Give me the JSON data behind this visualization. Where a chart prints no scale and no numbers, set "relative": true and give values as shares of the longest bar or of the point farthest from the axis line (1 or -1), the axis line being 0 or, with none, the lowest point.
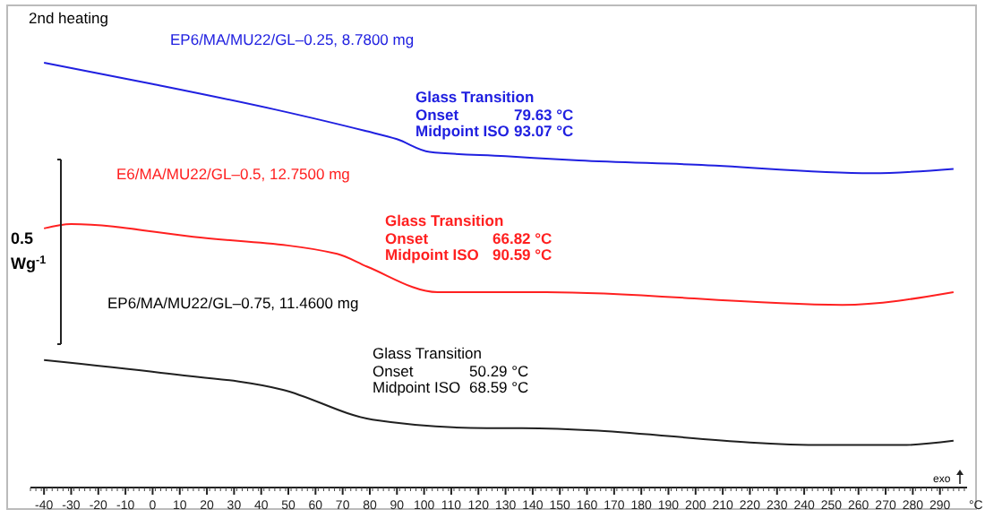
{
  "chart_data": {
    "type": "line",
    "relative": true,
    "xlabel": "°C",
    "xlim": [
      -45,
      300
    ],
    "xticks": [
      -40,
      -30,
      -20,
      -10,
      0,
      10,
      20,
      30,
      40,
      50,
      60,
      70,
      80,
      90,
      100,
      110,
      120,
      130,
      140,
      150,
      160,
      170,
      180,
      190,
      200,
      210,
      220,
      230,
      240,
      250,
      260,
      270,
      280,
      290
    ],
    "grid": false,
    "legend": false,
    "marker": "none",
    "line_style": "solid",
    "series": [
      {
        "name": "EP6/MA/MU22/GL–0.25, 8.7800 mg",
        "color": "#2020e0",
        "x": [
          -40,
          0,
          45,
          78,
          90,
          102,
          130,
          157,
          200,
          265,
          295
        ],
        "values": [
          1.0,
          0.95,
          0.89,
          0.84,
          0.82,
          0.79,
          0.78,
          0.77,
          0.76,
          0.74,
          0.75
        ]
      },
      {
        "name": "E6/MA/MU22/GL–0.5, 12.7500 mg",
        "color": "#ff2020",
        "x": [
          -40,
          -30,
          15,
          68,
          79,
          105,
          123,
          145,
          254,
          295
        ],
        "values": [
          0.61,
          0.62,
          0.59,
          0.55,
          0.52,
          0.46,
          0.46,
          0.46,
          0.43,
          0.46
        ]
      },
      {
        "name": "EP6/MA/MU22/GL–0.75, 11.4600 mg",
        "color": "#202020",
        "x": [
          -40,
          3,
          48,
          81,
          123,
          136,
          248,
          276,
          295
        ],
        "values": [
          0.3,
          0.27,
          0.23,
          0.16,
          0.14,
          0.14,
          0.1,
          0.1,
          0.11
        ]
      }
    ],
    "annotations": [
      "2nd heating",
      "Glass Transition",
      "Onset",
      "79.63 °C",
      "Midpoint ISO",
      "93.07 °C",
      "Glass Transition",
      "Onset",
      "66.82 °C",
      "Midpoint ISO",
      "90.59 °C",
      "Glass Transition",
      "Onset",
      "50.29 °C",
      "Midpoint ISO",
      "68.59 °C",
      "0.5",
      "Wg$^{-1}$",
      "exo"
    ]
  }
}
